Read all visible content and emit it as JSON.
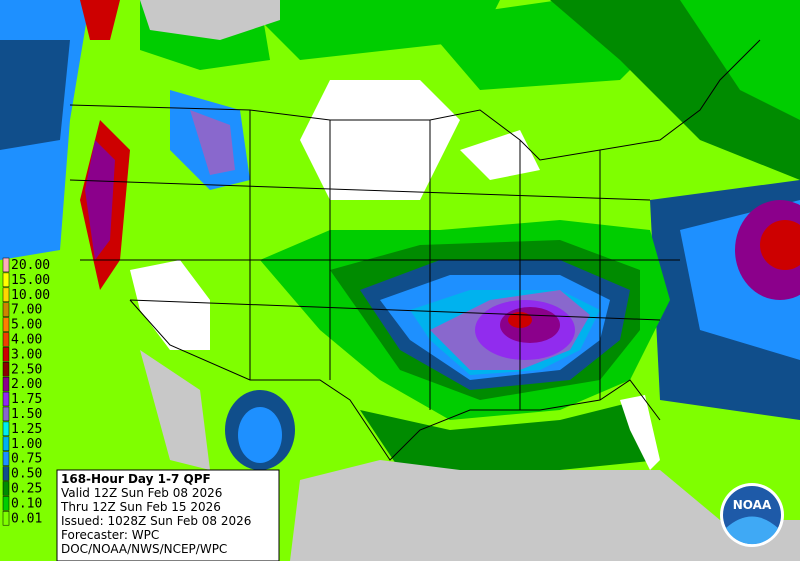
{
  "legend": {
    "entries": [
      {
        "label": "20.00",
        "color": "#ffaeb9"
      },
      {
        "label": "15.00",
        "color": "#ffff00"
      },
      {
        "label": "10.00",
        "color": "#ffd700"
      },
      {
        "label": "7.00",
        "color": "#cd8500"
      },
      {
        "label": "5.00",
        "color": "#ff7f00"
      },
      {
        "label": "4.00",
        "color": "#ee4000"
      },
      {
        "label": "3.00",
        "color": "#cd0000"
      },
      {
        "label": "2.50",
        "color": "#8b0000"
      },
      {
        "label": "2.00",
        "color": "#8b008b"
      },
      {
        "label": "1.75",
        "color": "#912cee"
      },
      {
        "label": "1.50",
        "color": "#8968cd"
      },
      {
        "label": "1.25",
        "color": "#00eeee"
      },
      {
        "label": "1.00",
        "color": "#00b2ee"
      },
      {
        "label": "0.75",
        "color": "#1e90ff"
      },
      {
        "label": "0.50",
        "color": "#104e8b"
      },
      {
        "label": "0.25",
        "color": "#008b00"
      },
      {
        "label": "0.10",
        "color": "#00cd00"
      },
      {
        "label": "0.01",
        "color": "#7fff00"
      }
    ]
  },
  "info": {
    "title": "168-Hour Day 1-7 QPF",
    "lines": [
      "Valid 12Z Sun Feb 08 2026",
      "Thru 12Z Sun Feb 15 2026",
      "Issued: 1028Z Sun Feb 08 2026",
      "Forecaster: WPC",
      "DOC/NOAA/NWS/NCEP/WPC"
    ]
  },
  "logo": {
    "text": "NOAA"
  }
}
